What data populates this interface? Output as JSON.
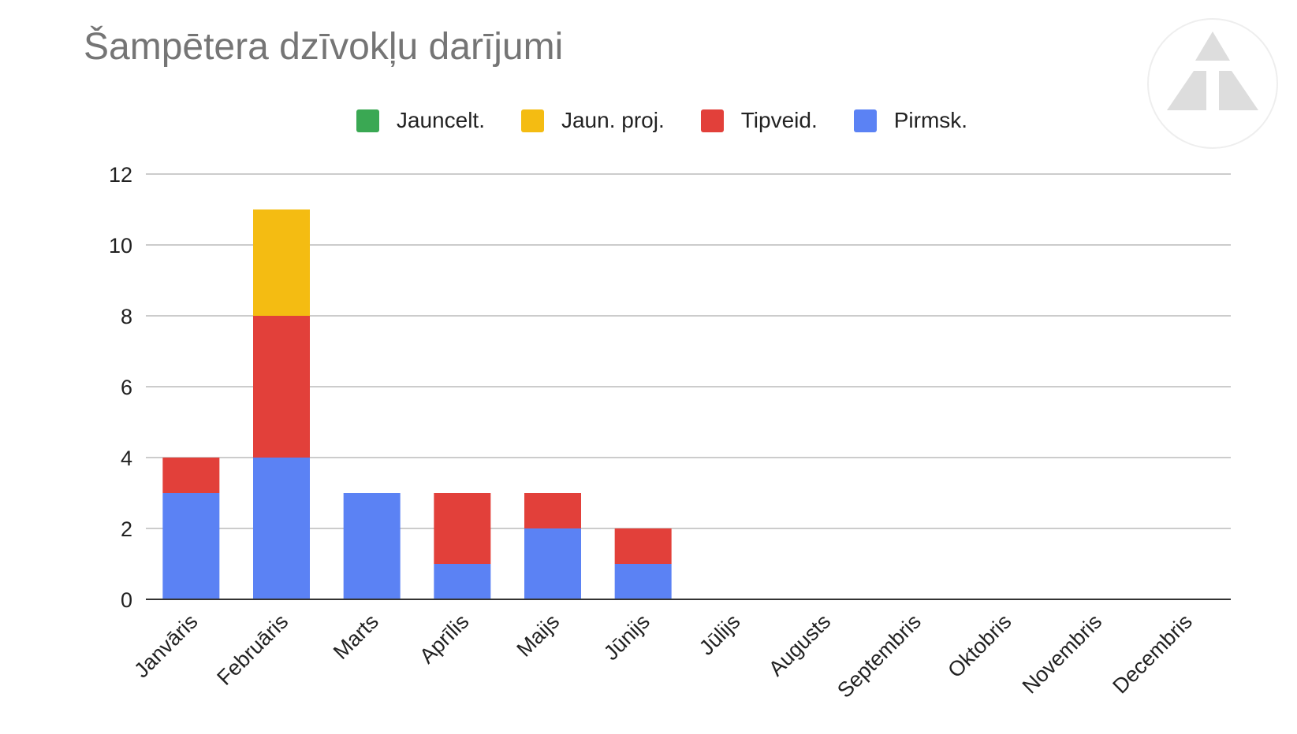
{
  "chart_data": {
    "type": "bar",
    "stacked": true,
    "title": "Šampētera dzīvokļu darījumi",
    "xlabel": "",
    "ylabel": "",
    "ylim": [
      0,
      12
    ],
    "yticks": [
      0,
      2,
      4,
      6,
      8,
      10,
      12
    ],
    "grid": true,
    "legend_position": "top",
    "categories": [
      "Janvāris",
      "Februāris",
      "Marts",
      "Aprīlis",
      "Maijs",
      "Jūnijs",
      "Jūlijs",
      "Augusts",
      "Septembris",
      "Oktobris",
      "Novembris",
      "Decembris"
    ],
    "series": [
      {
        "name": "Pirmsk.",
        "color": "#5b82f4",
        "values": [
          3,
          4,
          3,
          1,
          2,
          1,
          0,
          0,
          0,
          0,
          0,
          0
        ]
      },
      {
        "name": "Tipveid.",
        "color": "#e2403a",
        "values": [
          1,
          4,
          0,
          2,
          1,
          1,
          0,
          0,
          0,
          0,
          0,
          0
        ]
      },
      {
        "name": "Jaun. proj.",
        "color": "#f4bc12",
        "values": [
          0,
          3,
          0,
          0,
          0,
          0,
          0,
          0,
          0,
          0,
          0,
          0
        ]
      },
      {
        "name": "Jauncelt.",
        "color": "#3aa853",
        "values": [
          0,
          0,
          0,
          0,
          0,
          0,
          0,
          0,
          0,
          0,
          0,
          0
        ]
      }
    ],
    "legend_order": [
      "Jauncelt.",
      "Jaun. proj.",
      "Tipveid.",
      "Pirmsk."
    ]
  },
  "logo": {
    "icon": "triangle-logo-icon"
  }
}
